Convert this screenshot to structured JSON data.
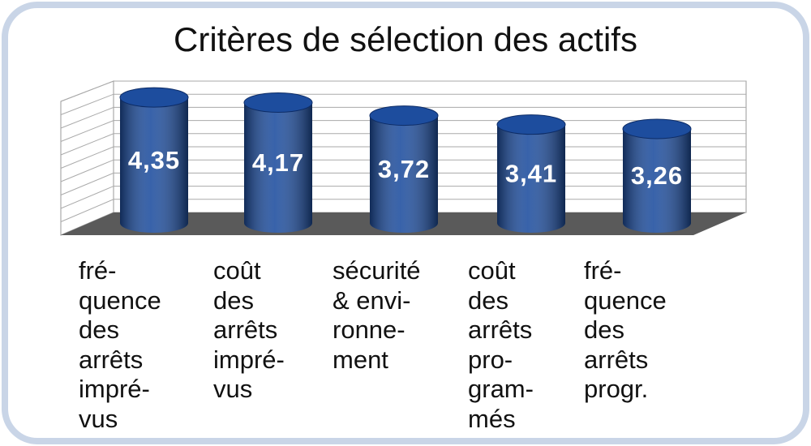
{
  "chart_data": {
    "type": "bar",
    "title": "Critères de sélection des actifs",
    "categories": [
      "fré-\nquence\ndes\narrêts\nimpré-\nvus",
      "coût\ndes\narrêts\nimpré-\nvus",
      "sécurité\n& envi-\nronne-\nment",
      "coût\ndes\narrêts\npro-\ngram-\nmés",
      "fré-\nquence\ndes\narrêts\nprogr."
    ],
    "values": [
      4.35,
      4.17,
      3.72,
      3.41,
      3.26
    ],
    "value_labels": [
      "4,35",
      "4,17",
      "3,72",
      "3,41",
      "3,26"
    ],
    "color": "#1d4d9e",
    "ylim": [
      0,
      5
    ],
    "yticks": [
      0,
      0.5,
      1,
      1.5,
      2,
      2.5,
      3,
      3.5,
      4,
      4.5,
      5
    ],
    "grid": true
  }
}
